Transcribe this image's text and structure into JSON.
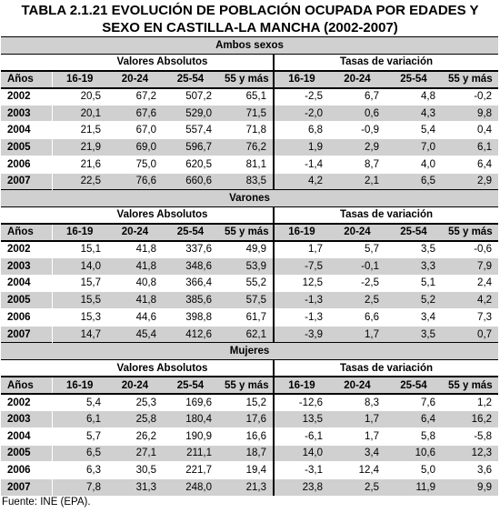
{
  "title_line1": "TABLA 2.1.21 EVOLUCIÓN DE POBLACIÓN OCUPADA POR EDADES Y",
  "title_line2": "SEXO EN CASTILLA-LA MANCHA (2002-2007)",
  "group_abs": "Valores Absolutos",
  "group_var": "Tasas de variación",
  "col_year": "Años",
  "cols": [
    "16-19",
    "20-24",
    "25-54",
    "55 y más"
  ],
  "sections": [
    {
      "name": "Ambos sexos",
      "rows": [
        {
          "year": "2002",
          "abs": [
            "20,5",
            "67,2",
            "507,2",
            "65,1"
          ],
          "var": [
            "-2,5",
            "6,7",
            "4,8",
            "-0,2"
          ]
        },
        {
          "year": "2003",
          "abs": [
            "20,1",
            "67,6",
            "529,0",
            "71,5"
          ],
          "var": [
            "-2,0",
            "0,6",
            "4,3",
            "9,8"
          ]
        },
        {
          "year": "2004",
          "abs": [
            "21,5",
            "67,0",
            "557,4",
            "71,8"
          ],
          "var": [
            "6,8",
            "-0,9",
            "5,4",
            "0,4"
          ]
        },
        {
          "year": "2005",
          "abs": [
            "21,9",
            "69,0",
            "596,7",
            "76,2"
          ],
          "var": [
            "1,9",
            "2,9",
            "7,0",
            "6,1"
          ]
        },
        {
          "year": "2006",
          "abs": [
            "21,6",
            "75,0",
            "620,5",
            "81,1"
          ],
          "var": [
            "-1,4",
            "8,7",
            "4,0",
            "6,4"
          ]
        },
        {
          "year": "2007",
          "abs": [
            "22,5",
            "76,6",
            "660,6",
            "83,5"
          ],
          "var": [
            "4,2",
            "2,1",
            "6,5",
            "2,9"
          ]
        }
      ]
    },
    {
      "name": "Varones",
      "rows": [
        {
          "year": "2002",
          "abs": [
            "15,1",
            "41,8",
            "337,6",
            "49,9"
          ],
          "var": [
            "1,7",
            "5,7",
            "3,5",
            "-0,6"
          ]
        },
        {
          "year": "2003",
          "abs": [
            "14,0",
            "41,8",
            "348,6",
            "53,9"
          ],
          "var": [
            "-7,5",
            "-0,1",
            "3,3",
            "7,9"
          ]
        },
        {
          "year": "2004",
          "abs": [
            "15,7",
            "40,8",
            "366,4",
            "55,2"
          ],
          "var": [
            "12,5",
            "-2,5",
            "5,1",
            "2,4"
          ]
        },
        {
          "year": "2005",
          "abs": [
            "15,5",
            "41,8",
            "385,6",
            "57,5"
          ],
          "var": [
            "-1,3",
            "2,5",
            "5,2",
            "4,2"
          ]
        },
        {
          "year": "2006",
          "abs": [
            "15,3",
            "44,6",
            "398,8",
            "61,7"
          ],
          "var": [
            "-1,3",
            "6,6",
            "3,4",
            "7,3"
          ]
        },
        {
          "year": "2007",
          "abs": [
            "14,7",
            "45,4",
            "412,6",
            "62,1"
          ],
          "var": [
            "-3,9",
            "1,7",
            "3,5",
            "0,7"
          ]
        }
      ]
    },
    {
      "name": "Mujeres",
      "rows": [
        {
          "year": "2002",
          "abs": [
            "5,4",
            "25,3",
            "169,6",
            "15,2"
          ],
          "var": [
            "-12,6",
            "8,3",
            "7,6",
            "1,2"
          ]
        },
        {
          "year": "2003",
          "abs": [
            "6,1",
            "25,8",
            "180,4",
            "17,6"
          ],
          "var": [
            "13,5",
            "1,7",
            "6,4",
            "16,2"
          ]
        },
        {
          "year": "2004",
          "abs": [
            "5,7",
            "26,2",
            "190,9",
            "16,6"
          ],
          "var": [
            "-6,1",
            "1,7",
            "5,8",
            "-5,8"
          ]
        },
        {
          "year": "2005",
          "abs": [
            "6,5",
            "27,1",
            "211,1",
            "18,7"
          ],
          "var": [
            "14,0",
            "3,4",
            "10,6",
            "12,3"
          ]
        },
        {
          "year": "2006",
          "abs": [
            "6,3",
            "30,5",
            "221,7",
            "19,4"
          ],
          "var": [
            "-3,1",
            "12,4",
            "5,0",
            "3,6"
          ]
        },
        {
          "year": "2007",
          "abs": [
            "7,8",
            "31,3",
            "248,0",
            "21,3"
          ],
          "var": [
            "23,8",
            "2,5",
            "11,9",
            "9,9"
          ]
        }
      ]
    }
  ],
  "source": "Fuente: INE (EPA)."
}
